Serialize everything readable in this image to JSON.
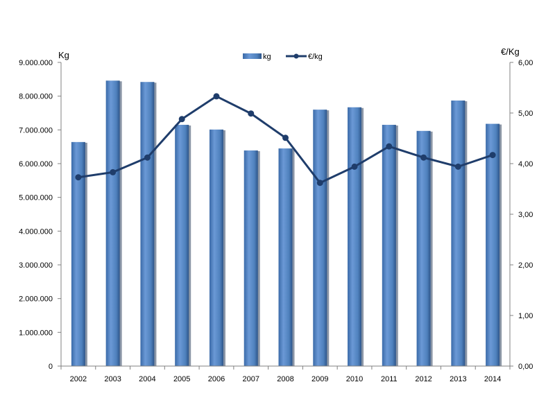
{
  "chart_data": {
    "type": "bar+line",
    "categories": [
      "2002",
      "2003",
      "2004",
      "2005",
      "2006",
      "2007",
      "2008",
      "2009",
      "2010",
      "2011",
      "2012",
      "2013",
      "2014"
    ],
    "series": [
      {
        "name": "kg",
        "type": "bar",
        "axis": "left",
        "color": "#4f81bd",
        "values": [
          6640000,
          8460000,
          8420000,
          7150000,
          7010000,
          6390000,
          6450000,
          7600000,
          7670000,
          7150000,
          6970000,
          7870000,
          7180000
        ]
      },
      {
        "name": "€/kg",
        "type": "line",
        "axis": "right",
        "color": "#1f3d6b",
        "values": [
          3.73,
          3.83,
          4.12,
          4.88,
          5.33,
          4.99,
          4.51,
          3.62,
          3.94,
          4.34,
          4.12,
          3.94,
          4.17
        ]
      }
    ],
    "ylabel_left": "Kg",
    "ylabel_right": "€/Kg",
    "ylim_left": [
      0,
      9000000
    ],
    "ylim_right": [
      0,
      6
    ],
    "yticks_left": [
      "0",
      "1.000.000",
      "2.000.000",
      "3.000.000",
      "4.000.000",
      "5.000.000",
      "6.000.000",
      "7.000.000",
      "8.000.000",
      "9.000.000"
    ],
    "yticks_right": [
      "0,00",
      "1,00",
      "2,00",
      "3,00",
      "4,00",
      "5,00",
      "6,00"
    ],
    "legend": {
      "placement": "top-center",
      "entries": [
        "kg",
        "€/kg"
      ]
    },
    "grid": false
  }
}
